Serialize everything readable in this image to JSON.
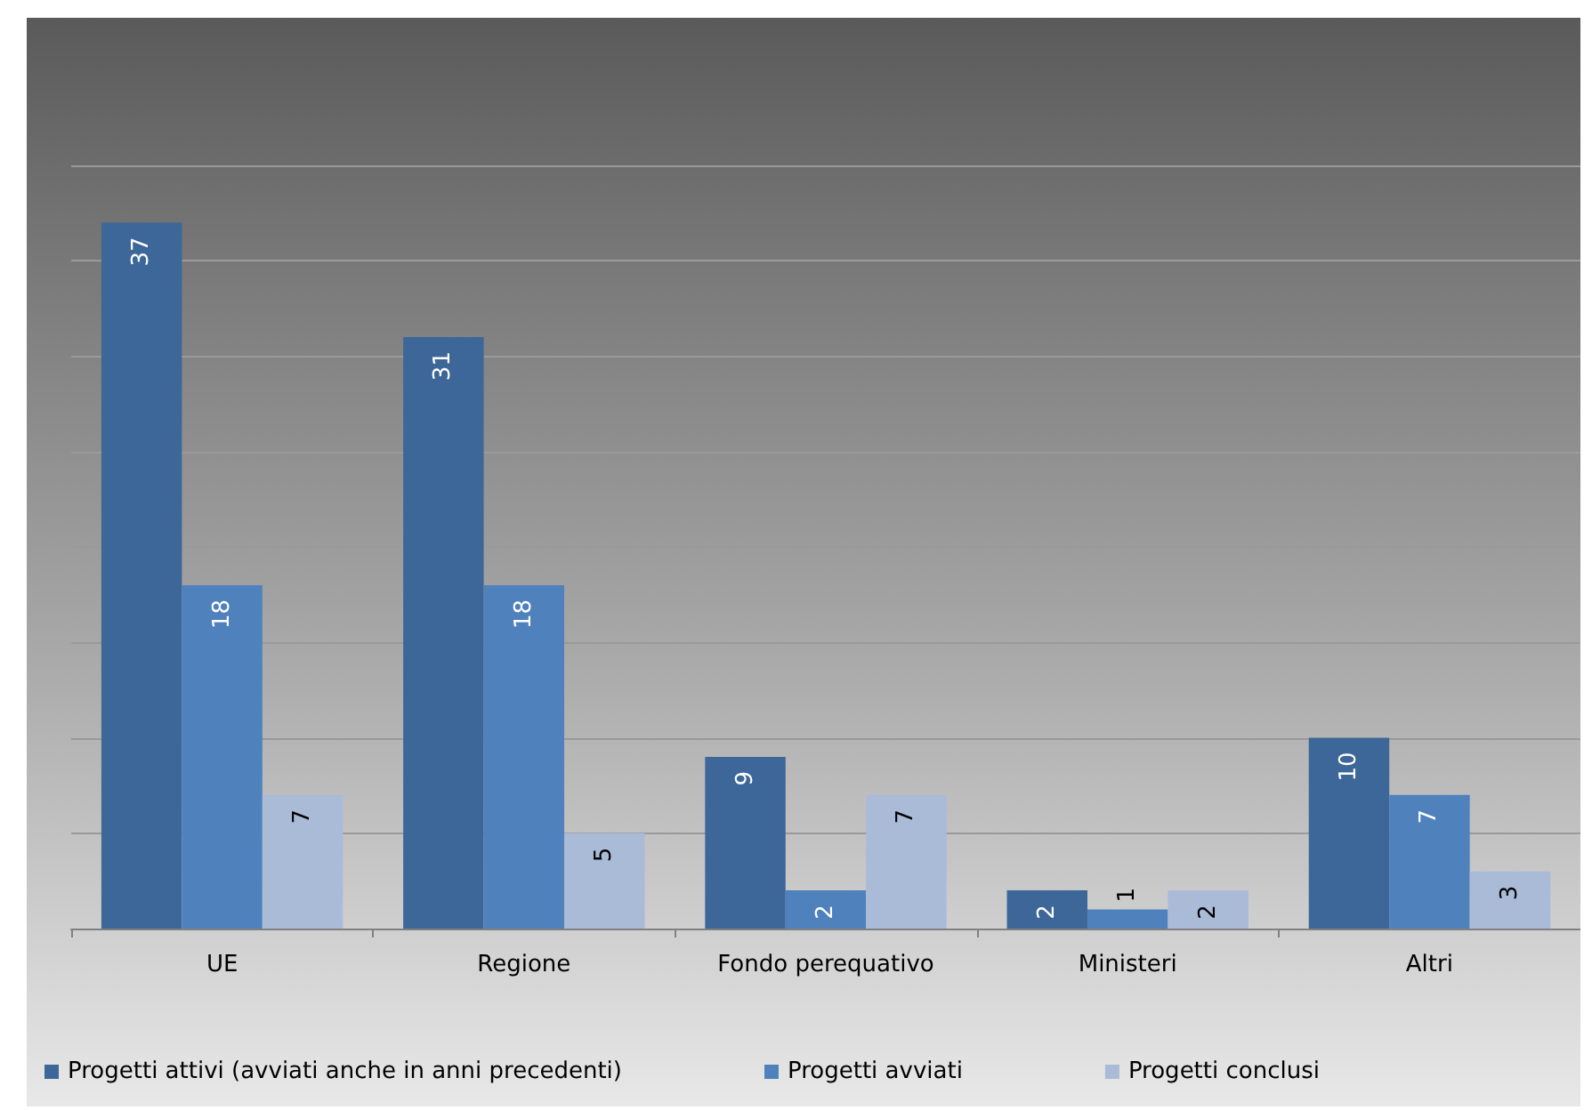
{
  "chart_data": {
    "type": "bar",
    "categories": [
      "UE",
      "Regione",
      "Fondo perequativo",
      "Ministeri",
      "Altri"
    ],
    "series": [
      {
        "name": "Progetti attivi (avviati anche in anni precedenti)",
        "color": "#3d6699",
        "values": [
          37,
          31,
          9,
          2,
          10
        ]
      },
      {
        "name": "Progetti avviati",
        "color": "#4f81bd",
        "values": [
          18,
          18,
          2,
          1,
          7
        ]
      },
      {
        "name": "Progetti conclusi",
        "color": "#aabbd8",
        "values": [
          7,
          5,
          7,
          2,
          3
        ]
      }
    ],
    "ylim": [
      0,
      40
    ],
    "tick_labels": "x",
    "grid": "y",
    "data_labels": true,
    "legend": "bottom"
  }
}
